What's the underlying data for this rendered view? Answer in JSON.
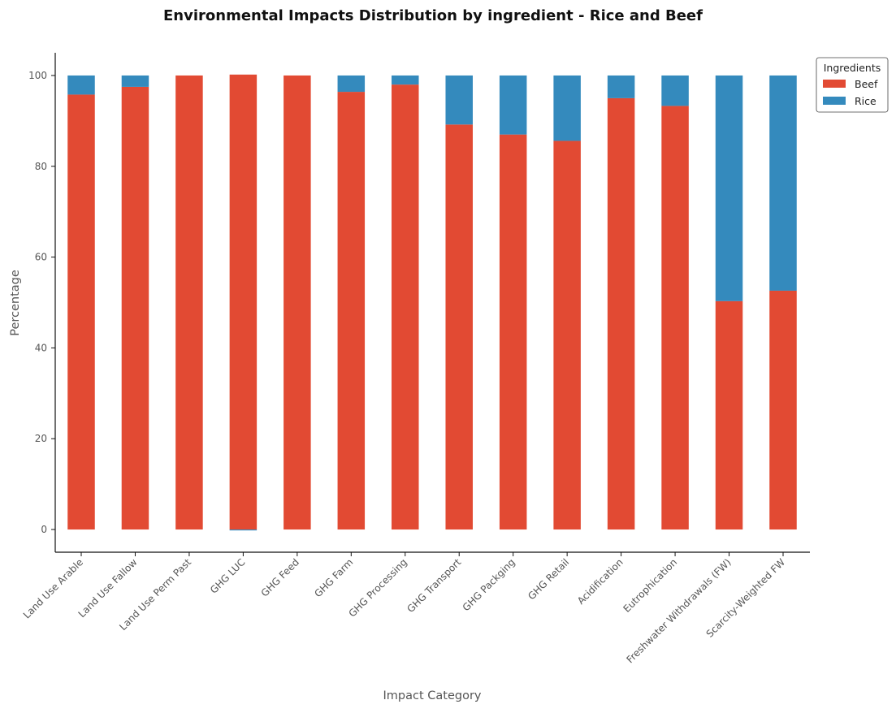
{
  "chart_data": {
    "type": "bar",
    "stacked": true,
    "title": "Environmental Impacts Distribution by ingredient - Rice and Beef",
    "xlabel": "Impact Category",
    "ylabel": "Percentage",
    "ylim": [
      -5,
      105
    ],
    "yticks": [
      0,
      20,
      40,
      60,
      80,
      100
    ],
    "grid": false,
    "categories": [
      "Land Use Arable",
      "Land Use Fallow",
      "Land Use Perm Past",
      "GHG LUC",
      "GHG Feed",
      "GHG Farm",
      "GHG Processing",
      "GHG Transport",
      "GHG Packging",
      "GHG Retail",
      "Acidification",
      "Eutrophication",
      "Freshwater Withdrawals (FW)",
      "Scarcity-Weighted FW"
    ],
    "series": [
      {
        "name": "Beef",
        "color": "#E24A33",
        "values": [
          95.8,
          97.5,
          100.0,
          100.2,
          100.0,
          96.4,
          98.0,
          89.2,
          87.0,
          85.6,
          95.0,
          93.3,
          50.3,
          52.6
        ]
      },
      {
        "name": "Rice",
        "color": "#348ABD",
        "values": [
          4.2,
          2.5,
          0.0,
          -0.2,
          0.0,
          3.6,
          2.0,
          10.8,
          13.0,
          14.4,
          5.0,
          6.7,
          49.7,
          47.4
        ]
      }
    ],
    "legend": {
      "title": "Ingredients",
      "placement": "upper-right-outside"
    }
  }
}
